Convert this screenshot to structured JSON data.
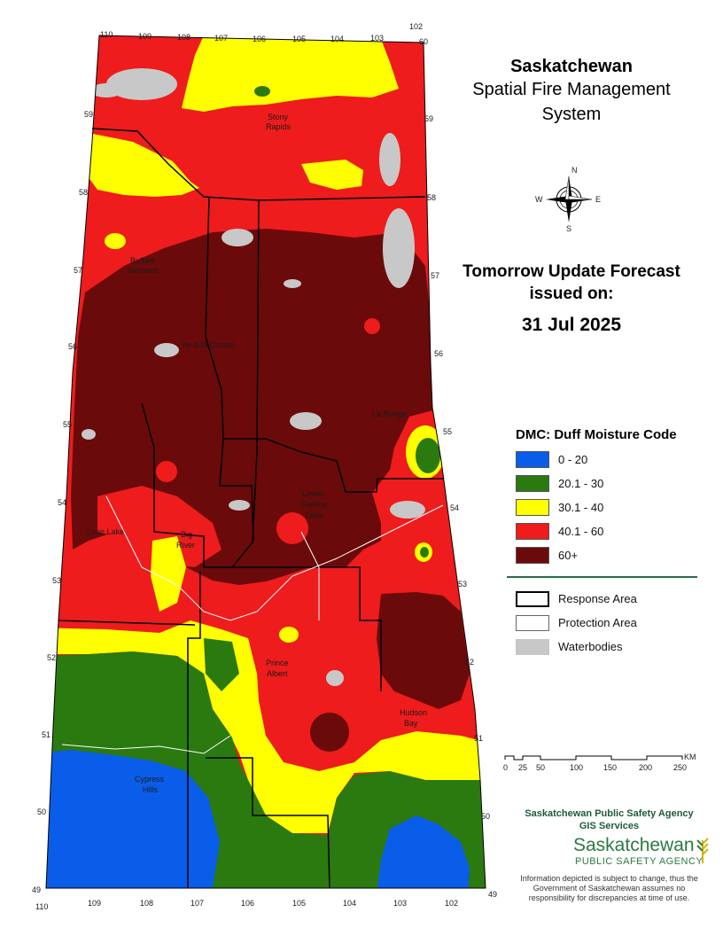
{
  "header": {
    "title_line1": "Saskatchewan",
    "title_line2": "Spatial Fire Management",
    "title_line3": "System"
  },
  "forecast": {
    "line1": "Tomorrow Update Forecast",
    "line2": "issued on:",
    "date": "31 Jul 2025"
  },
  "compass": {
    "n": "N",
    "e": "E",
    "s": "S",
    "w": "W"
  },
  "legend": {
    "title": "DMC: Duff Moisture Code",
    "classes": [
      {
        "label": "0 - 20",
        "color": "#0a5de8"
      },
      {
        "label": "20.1 - 30",
        "color": "#2a7a10"
      },
      {
        "label": "30.1 - 40",
        "color": "#ffff00"
      },
      {
        "label": "40.1 - 60",
        "color": "#ee1c1c"
      },
      {
        "label": "60+",
        "color": "#6b0a0a"
      }
    ],
    "boundaries": [
      {
        "label": "Response Area"
      },
      {
        "label": "Protection Area"
      },
      {
        "label": "Waterbodies",
        "color": "#c8c8c8"
      }
    ]
  },
  "scale": {
    "ticks": [
      "0",
      "25",
      "50",
      "100",
      "150",
      "200",
      "250"
    ],
    "unit": "KM"
  },
  "agency": {
    "line1": "Saskatchewan Public Safety Agency",
    "line2": "GIS  Services",
    "logo_main": "Saskatchewan",
    "logo_sub": "PUBLIC SAFETY AGENCY",
    "disclaimer": "Information depicted is subject to change, thus the Government of Saskatchewan assumes no responsibility for discrepancies at time of use."
  },
  "map": {
    "longitudes_top": [
      "110",
      "109",
      "108",
      "107",
      "106",
      "105",
      "104",
      "103",
      "102"
    ],
    "longitudes_bottom": [
      "110",
      "109",
      "108",
      "107",
      "106",
      "105",
      "104",
      "103",
      "102"
    ],
    "latitudes_left": [
      "59",
      "58",
      "57",
      "56",
      "55",
      "54",
      "53",
      "52",
      "51",
      "50",
      "49"
    ],
    "latitudes_right": [
      "60",
      "59",
      "58",
      "57",
      "56",
      "55",
      "54",
      "53",
      "52",
      "51",
      "50",
      "49"
    ],
    "places": [
      {
        "name": "Stony",
        "name2": "Rapids"
      },
      {
        "name": "Buffalo",
        "name2": "Narrows"
      },
      {
        "name": "Ile-a-la-Crosse"
      },
      {
        "name": "La Ronge"
      },
      {
        "name": "Lower",
        "name2": "Fishing",
        "name3": "Lake"
      },
      {
        "name": "Loon Lake"
      },
      {
        "name": "Big",
        "name2": "River"
      },
      {
        "name": "Prince",
        "name2": "Albert"
      },
      {
        "name": "Hudson",
        "name2": "Bay"
      },
      {
        "name": "Cypress",
        "name2": "Hills"
      }
    ]
  }
}
